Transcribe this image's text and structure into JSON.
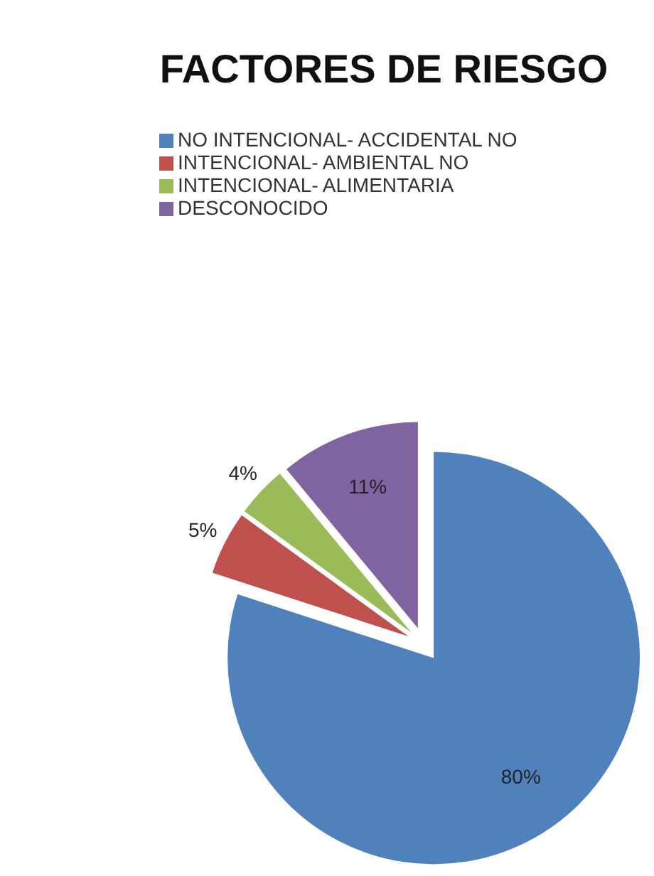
{
  "chart_data": {
    "type": "pie",
    "title": "FACTORES DE RIESGO",
    "categories": [
      "NO INTENCIONAL- ACCIDENTAL NO",
      "INTENCIONAL- AMBIENTAL NO",
      "INTENCIONAL- ALIMENTARIA",
      "DESCONOCIDO"
    ],
    "values": [
      80,
      5,
      4,
      11
    ],
    "colors": [
      "#4f81bd",
      "#c0504d",
      "#9bbb59",
      "#8064a2"
    ],
    "value_labels": [
      "80%",
      "5%",
      "4%",
      "11%"
    ],
    "legend": "top"
  }
}
